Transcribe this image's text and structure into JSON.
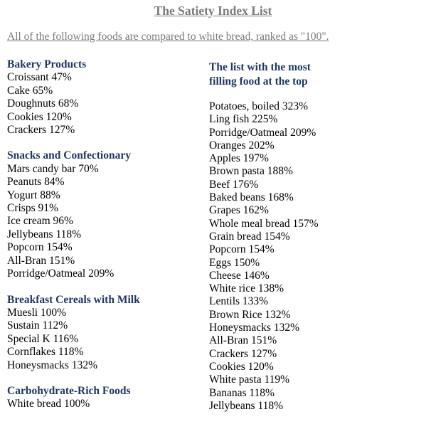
{
  "title": "The Satiety Index List",
  "intro": "All of the following foods are compared to white bread, ranked as \"100\".",
  "left_sections": [
    {
      "title": "Bakery Products",
      "items": [
        "Croissant 47%",
        "Cake 65%",
        "Doughnuts 68%",
        "Cookies 120%",
        "Crackers 127%"
      ]
    },
    {
      "title": "Snacks and Confectionary",
      "items": [
        "Mars candy bar 70%",
        "Peanuts 84%",
        "Yogurt 88%",
        "Crisps 91%",
        "Ice cream 96%",
        "Jellybeans 118%",
        "Popcorn 154%",
        "All-Bran 151%",
        "Porridge/Oatmeal 209%"
      ]
    },
    {
      "title": "Breakfast Cereals with Milk",
      "items": [
        "Muesli 100%",
        "Sustain 112%",
        "Special K 116%",
        "Cornflakes 118%",
        "Honeysmacks 132%"
      ]
    },
    {
      "title": "Carbohydrate-Rich Foods",
      "items": [
        "White bread 100%"
      ]
    }
  ],
  "right_section": {
    "title_line1": "The list with the most",
    "title_line2": "filling food at the top",
    "items": [
      "Potatoes, boiled 323%",
      "Ling fish 225%",
      "Porridge/Oatmeal 209%",
      "Oranges 202%",
      "Apples 197%",
      "Brown pasta 188%",
      "Beef 176%",
      "Baked beans 168%",
      "Grapes 162%",
      "Whole meal bread 157%",
      "Grain bread 154%",
      "Popcorn 154%",
      "Eggs 150%",
      "Cheese 146%",
      "White rice 138%",
      "Lentils 133%",
      "Brown Rice 132%",
      "Honeysmacks 132%",
      "All-Bran 151%",
      "Crackers 127%",
      "Cookies 120%",
      "White pasta 119%",
      "Bananas 118%",
      "Jellybeans 118%"
    ]
  }
}
